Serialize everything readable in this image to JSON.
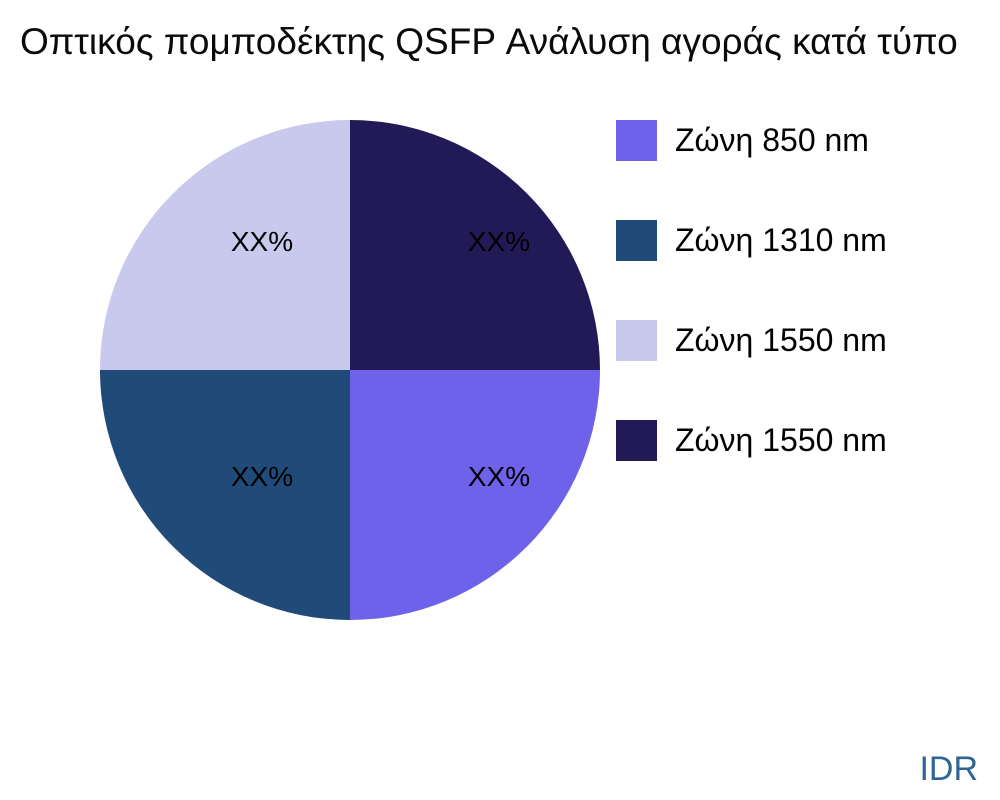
{
  "title": "Οπτικός πομποδέκτης QSFP Ανάλυση αγοράς κατά τύπο",
  "watermark": {
    "text": "IDR",
    "color": "#2f6495"
  },
  "chart_data": {
    "type": "pie",
    "title": "Οπτικός πομποδέκτης QSFP Ανάλυση αγοράς κατά τύπο",
    "legend_position": "right",
    "start_angle_deg": 0,
    "direction": "clockwise",
    "slices": [
      {
        "label": "Ζώνη 850 nm",
        "value": 25,
        "display": "XX%",
        "color": "#6f62ea"
      },
      {
        "label": "Ζώνη 1310 nm",
        "value": 25,
        "display": "XX%",
        "color": "#204a77"
      },
      {
        "label": "Ζώνη 1550 nm",
        "value": 25,
        "display": "XX%",
        "color": "#c8c9ec"
      },
      {
        "label": "Ζώνη 1550 nm",
        "value": 25,
        "display": "XX%",
        "color": "#221a56"
      }
    ]
  }
}
